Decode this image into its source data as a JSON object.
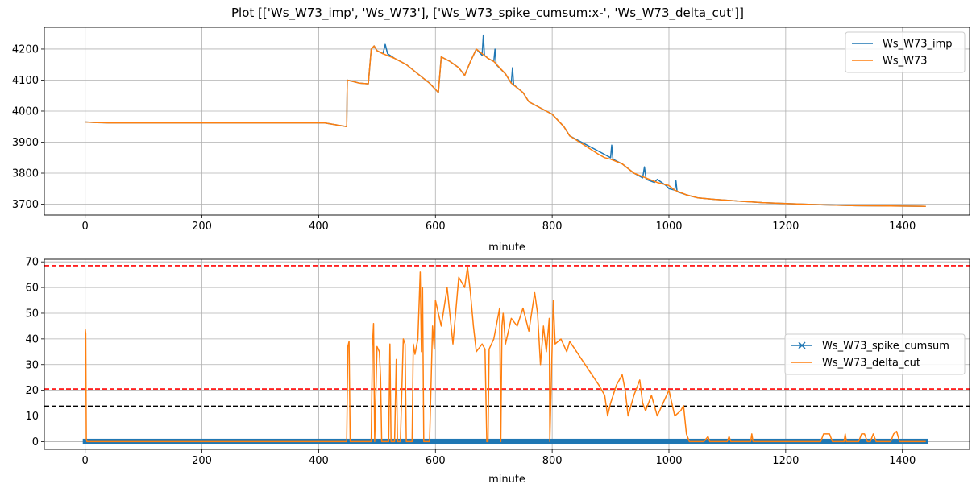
{
  "figure": {
    "title": "Plot [['Ws_W73_imp', 'Ws_W73'], ['Ws_W73_spike_cumsum:x-', 'Ws_W73_delta_cut']]"
  },
  "chart_data": [
    {
      "type": "line",
      "xlabel": "minute",
      "ylabel": "",
      "xlim": [
        -70,
        1515
      ],
      "ylim": [
        3665,
        4270
      ],
      "xticks": [
        0,
        200,
        400,
        600,
        800,
        1000,
        1200,
        1400
      ],
      "yticks": [
        3700,
        3800,
        3900,
        4000,
        4100,
        4200
      ],
      "grid": true,
      "legend": "top-right",
      "series": [
        {
          "name": "Ws_W73_imp",
          "color": "#1f77b4",
          "x": [
            0,
            20,
            40,
            60,
            400,
            410,
            448,
            449,
            460,
            470,
            485,
            490,
            495,
            500,
            510,
            514,
            518,
            530,
            550,
            570,
            590,
            605,
            610,
            625,
            640,
            650,
            660,
            670,
            675,
            680,
            682,
            684,
            690,
            700,
            702,
            704,
            720,
            730,
            732,
            734,
            750,
            760,
            780,
            800,
            820,
            830,
            880,
            890,
            900,
            902,
            904,
            920,
            940,
            955,
            958,
            961,
            975,
            980,
            995,
            1000,
            1010,
            1012,
            1014,
            1030,
            1050,
            1080,
            1120,
            1160,
            1200,
            1260,
            1320,
            1380,
            1440
          ],
          "y": [
            3965,
            3963,
            3962,
            3962,
            3962,
            3962,
            3950,
            4100,
            4095,
            4090,
            4088,
            4200,
            4210,
            4195,
            4185,
            4215,
            4185,
            4170,
            4150,
            4120,
            4090,
            4060,
            4175,
            4160,
            4140,
            4115,
            4160,
            4200,
            4190,
            4180,
            4245,
            4180,
            4170,
            4160,
            4200,
            4150,
            4120,
            4090,
            4140,
            4085,
            4060,
            4030,
            4010,
            3990,
            3950,
            3920,
            3870,
            3860,
            3850,
            3890,
            3845,
            3830,
            3800,
            3785,
            3820,
            3780,
            3770,
            3780,
            3760,
            3750,
            3745,
            3775,
            3740,
            3730,
            3720,
            3715,
            3710,
            3705,
            3702,
            3698,
            3695,
            3694,
            3693
          ]
        },
        {
          "name": "Ws_W73",
          "color": "#ff7f0e",
          "x": [
            0,
            20,
            40,
            60,
            400,
            410,
            448,
            449,
            460,
            470,
            485,
            490,
            495,
            500,
            510,
            530,
            550,
            570,
            590,
            605,
            610,
            625,
            640,
            650,
            660,
            670,
            680,
            690,
            700,
            720,
            730,
            750,
            760,
            780,
            800,
            820,
            830,
            880,
            890,
            900,
            920,
            940,
            960,
            980,
            1000,
            1010,
            1030,
            1050,
            1080,
            1120,
            1160,
            1200,
            1260,
            1320,
            1380,
            1440
          ],
          "y": [
            3965,
            3963,
            3962,
            3962,
            3962,
            3962,
            3950,
            4100,
            4095,
            4090,
            4088,
            4200,
            4210,
            4195,
            4185,
            4170,
            4150,
            4120,
            4090,
            4060,
            4175,
            4160,
            4140,
            4115,
            4160,
            4200,
            4185,
            4170,
            4160,
            4120,
            4090,
            4060,
            4030,
            4010,
            3990,
            3950,
            3920,
            3860,
            3850,
            3845,
            3830,
            3800,
            3785,
            3770,
            3760,
            3745,
            3730,
            3720,
            3715,
            3710,
            3705,
            3702,
            3698,
            3695,
            3694,
            3693
          ]
        }
      ]
    },
    {
      "type": "line",
      "xlabel": "minute",
      "ylabel": "",
      "xlim": [
        -70,
        1515
      ],
      "ylim": [
        -3,
        71
      ],
      "xticks": [
        0,
        200,
        400,
        600,
        800,
        1000,
        1200,
        1400
      ],
      "yticks": [
        0,
        10,
        20,
        30,
        40,
        50,
        60,
        70
      ],
      "grid": true,
      "legend": "center-right",
      "hlines": [
        {
          "y": 68.5,
          "color": "#ff0000",
          "style": "dashed"
        },
        {
          "y": 20.5,
          "color": "#ff0000",
          "style": "dashed"
        },
        {
          "y": 13.8,
          "color": "#000000",
          "style": "dashed"
        }
      ],
      "series": [
        {
          "name": "Ws_W73_spike_cumsum",
          "color": "#1f77b4",
          "marker": "x",
          "x_range": [
            0,
            1440
          ],
          "value": 0
        },
        {
          "name": "Ws_W73_delta_cut",
          "color": "#ff7f0e",
          "x": [
            0,
            1,
            2,
            3,
            448,
            450,
            452,
            454,
            490,
            492,
            494,
            496,
            500,
            504,
            506,
            508,
            510,
            520,
            522,
            524,
            530,
            533,
            535,
            540,
            545,
            548,
            550,
            555,
            560,
            562,
            565,
            570,
            574,
            576,
            578,
            580,
            585,
            590,
            595,
            598,
            600,
            610,
            620,
            630,
            640,
            650,
            655,
            660,
            665,
            670,
            680,
            685,
            688,
            690,
            692,
            700,
            710,
            712,
            714,
            716,
            720,
            730,
            740,
            750,
            760,
            770,
            775,
            780,
            785,
            790,
            795,
            796,
            800,
            802,
            805,
            815,
            825,
            830,
            880,
            890,
            895,
            900,
            910,
            920,
            925,
            930,
            940,
            950,
            955,
            960,
            970,
            980,
            990,
            1000,
            1005,
            1010,
            1020,
            1025,
            1030,
            1035,
            1040,
            1060,
            1067,
            1070,
            1100,
            1103,
            1106,
            1140,
            1142,
            1144,
            1260,
            1265,
            1275,
            1280,
            1300,
            1302,
            1304,
            1325,
            1330,
            1335,
            1340,
            1345,
            1350,
            1355,
            1380,
            1385,
            1390,
            1395,
            1440
          ],
          "y": [
            44,
            42,
            1,
            0,
            0,
            37,
            39,
            0,
            0,
            37,
            46,
            0,
            37,
            35,
            25,
            0,
            0,
            0,
            38,
            0,
            0,
            32,
            0,
            0,
            40,
            38,
            0,
            0,
            0,
            38,
            34,
            40,
            66,
            35,
            60,
            0,
            0,
            0,
            45,
            36,
            55,
            45,
            60,
            38,
            64,
            60,
            68,
            58,
            45,
            35,
            38,
            36,
            0,
            0,
            36,
            40,
            52,
            0,
            45,
            50,
            38,
            48,
            45,
            52,
            43,
            58,
            50,
            30,
            45,
            35,
            48,
            0,
            37,
            55,
            38,
            40,
            35,
            39,
            22,
            18,
            10,
            15,
            22,
            26,
            20,
            10,
            18,
            24,
            15,
            12,
            18,
            10,
            15,
            20,
            15,
            10,
            12,
            14,
            3,
            0,
            0,
            0,
            2,
            0,
            0,
            2,
            0,
            0,
            3,
            0,
            0,
            3,
            3,
            0,
            0,
            3,
            0,
            0,
            3,
            3,
            0,
            0,
            3,
            0,
            0,
            3,
            4,
            0,
            0
          ]
        }
      ]
    }
  ]
}
